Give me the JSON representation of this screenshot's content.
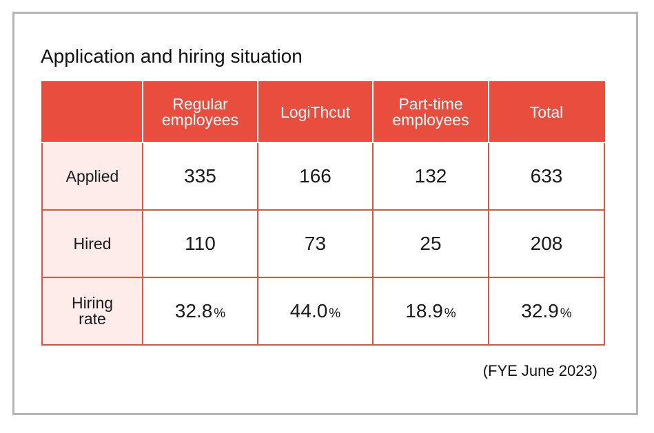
{
  "title": "Application and hiring situation",
  "table": {
    "columns": [
      "",
      "Regular\nemployees",
      "LogiThcut",
      "Part-time\nemployees",
      "Total"
    ],
    "rows": [
      {
        "label": "Applied",
        "values": [
          "335",
          "166",
          "132",
          "633"
        ],
        "units": [
          "",
          "",
          "",
          ""
        ]
      },
      {
        "label": "Hired",
        "values": [
          "110",
          "73",
          "25",
          "208"
        ],
        "units": [
          "",
          "",
          "",
          ""
        ]
      },
      {
        "label": "Hiring\nrate",
        "values": [
          "32.8",
          "44.0",
          "18.9",
          "32.9"
        ],
        "units": [
          "%",
          "%",
          "%",
          "%"
        ]
      }
    ]
  },
  "note": "(FYE June 2023)",
  "colors": {
    "header_bg": "#e84d3d",
    "rowhead_bg": "#fdecea",
    "border": "#e15443",
    "frame": "#b5b5b5"
  }
}
